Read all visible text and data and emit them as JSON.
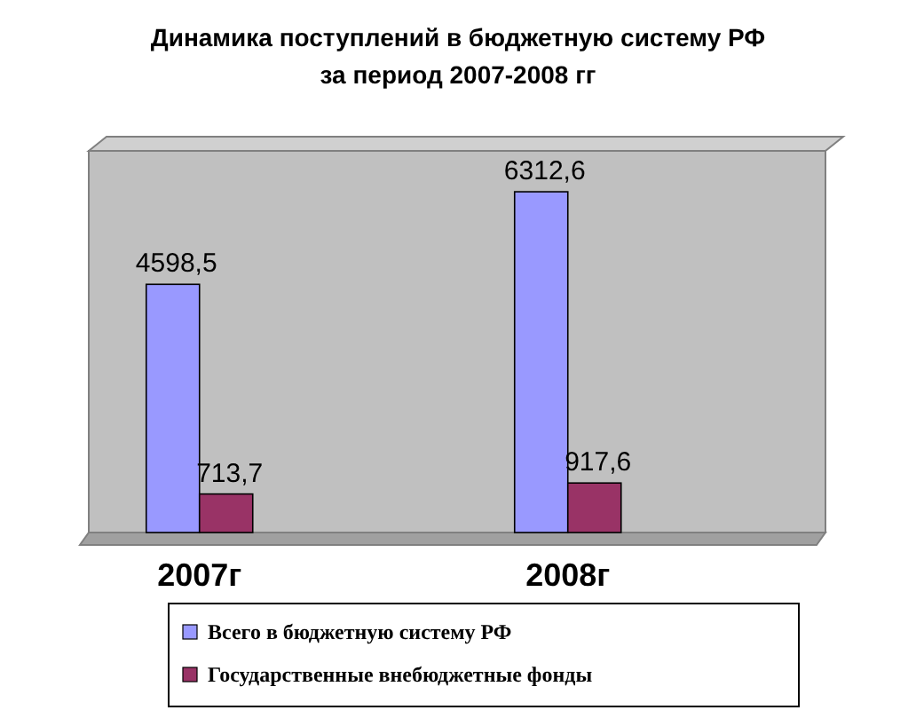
{
  "chart_data": {
    "type": "bar",
    "title": "Динамика поступлений в бюджетную систему РФ\nза период 2007-2008 гг",
    "categories": [
      "2007г",
      "2008г"
    ],
    "series": [
      {
        "name": "Всего в бюджетную систему РФ",
        "color": "#9999ff",
        "values": [
          4598.5,
          6312.6
        ],
        "value_labels": [
          "4598,5",
          "6312,6"
        ]
      },
      {
        "name": "Государственные внебюджетные фонды",
        "color": "#993366",
        "values": [
          713.7,
          917.6
        ],
        "value_labels": [
          "713,7",
          "917,6"
        ]
      }
    ],
    "legend": "bottom"
  }
}
